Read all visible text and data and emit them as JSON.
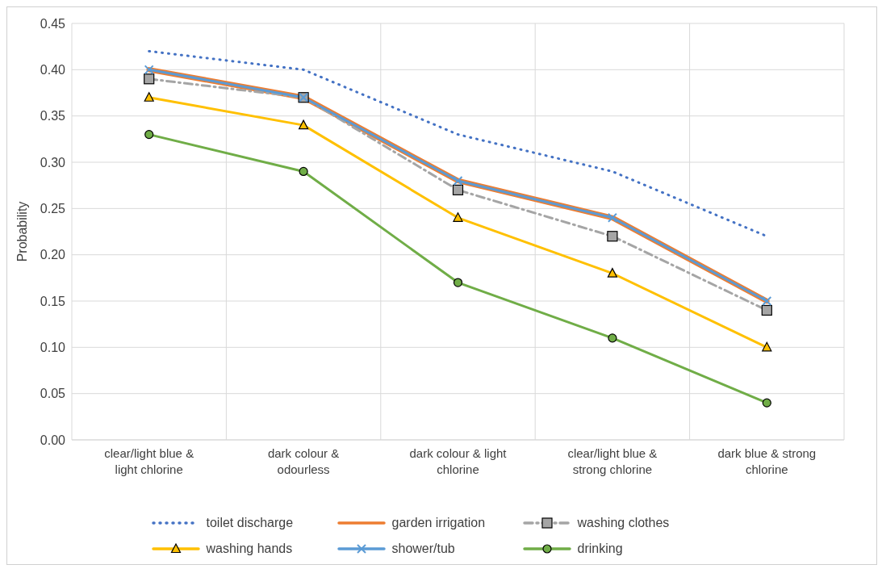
{
  "chart_data": {
    "type": "line",
    "ylabel": "Probability",
    "categories": [
      "clear/light blue & light chlorine",
      "dark colour & odourless",
      "dark colour & light chlorine",
      "clear/light blue & strong chlorine",
      "dark blue & strong chlorine"
    ],
    "series": [
      {
        "name": "toilet discharge",
        "color": "#4472c4",
        "line_style": "dotted",
        "marker": "none",
        "values": [
          0.42,
          0.4,
          0.33,
          0.29,
          0.22
        ]
      },
      {
        "name": "garden irrigation",
        "color": "#ed7d31",
        "line_style": "solid",
        "marker": "none",
        "values": [
          0.4,
          0.37,
          0.28,
          0.24,
          0.15
        ]
      },
      {
        "name": "washing clothes",
        "color": "#a5a5a5",
        "line_style": "dashed",
        "marker": "square",
        "values": [
          0.39,
          0.37,
          0.27,
          0.22,
          0.14
        ]
      },
      {
        "name": "washing hands",
        "color": "#ffc000",
        "line_style": "solid",
        "marker": "triangle",
        "values": [
          0.37,
          0.34,
          0.24,
          0.18,
          0.1
        ]
      },
      {
        "name": "shower/tub",
        "color": "#5b9bd5",
        "line_style": "solid",
        "marker": "cross",
        "values": [
          0.4,
          0.37,
          0.28,
          0.24,
          0.15
        ]
      },
      {
        "name": "drinking",
        "color": "#70ad47",
        "line_style": "solid",
        "marker": "circle",
        "values": [
          0.33,
          0.29,
          0.17,
          0.11,
          0.04
        ]
      }
    ],
    "ylim": [
      0,
      0.45
    ],
    "yticks": [
      {
        "value": 0,
        "label": "0.00"
      },
      {
        "value": 0.05,
        "label": "0.05"
      },
      {
        "value": 0.1,
        "label": "0.10"
      },
      {
        "value": 0.15,
        "label": "0.15"
      },
      {
        "value": 0.2,
        "label": "0.20"
      },
      {
        "value": 0.25,
        "label": "0.25"
      },
      {
        "value": 0.3,
        "label": "0.30"
      },
      {
        "value": 0.35,
        "label": "0.35"
      },
      {
        "value": 0.4,
        "label": "0.40"
      },
      {
        "value": 0.45,
        "label": "0.45"
      }
    ],
    "grid": true,
    "legend": "bottom"
  }
}
